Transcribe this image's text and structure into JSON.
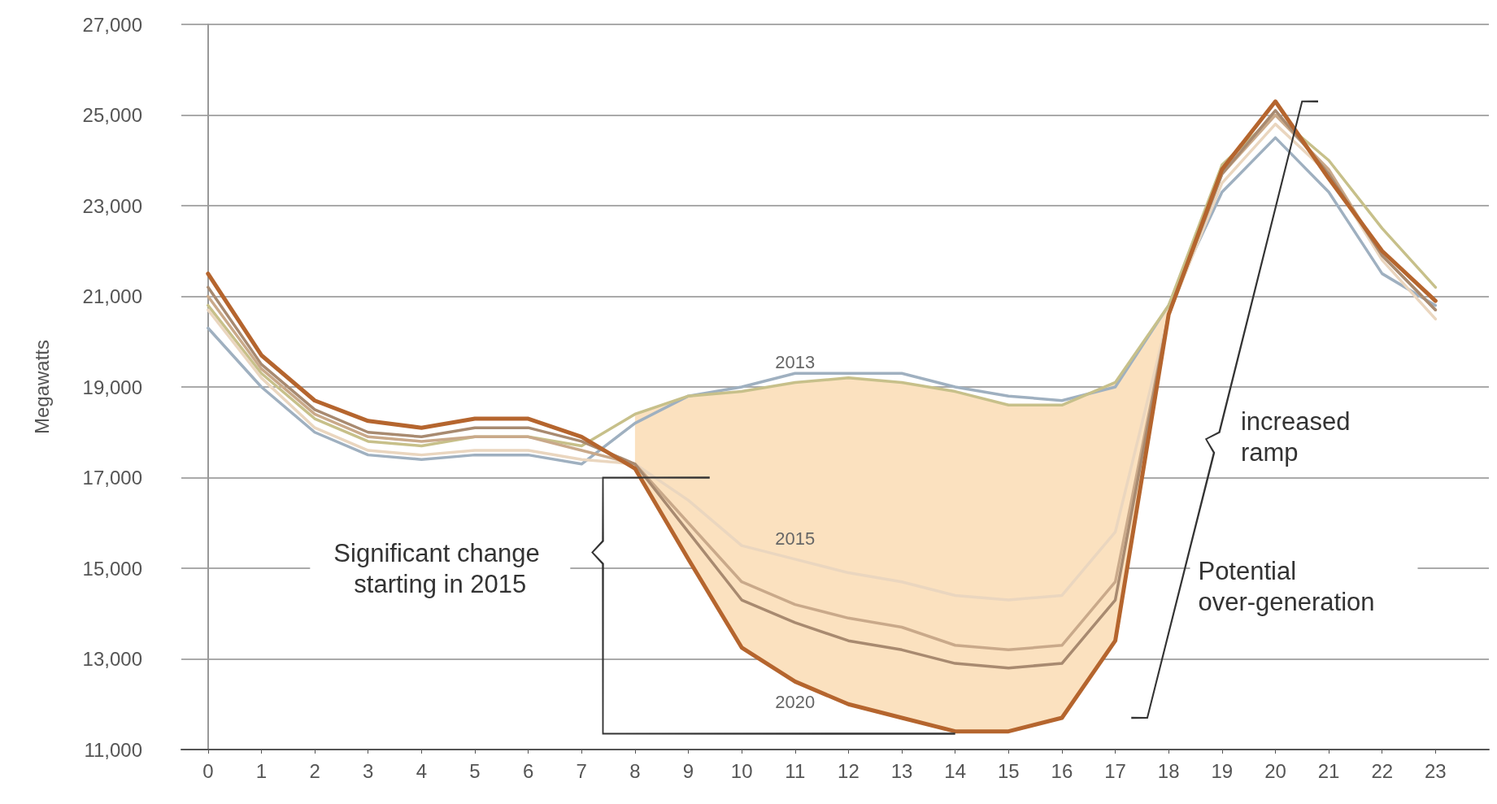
{
  "chart_data": {
    "type": "line",
    "ylabel": "Megawatts",
    "x": [
      0,
      1,
      2,
      3,
      4,
      5,
      6,
      7,
      8,
      9,
      10,
      11,
      12,
      13,
      14,
      15,
      16,
      17,
      18,
      19,
      20,
      21,
      22,
      23
    ],
    "xlim": [
      -0.5,
      24
    ],
    "xticks": [
      0,
      1,
      2,
      3,
      4,
      5,
      6,
      7,
      8,
      9,
      10,
      11,
      12,
      13,
      14,
      15,
      16,
      17,
      18,
      19,
      20,
      21,
      22,
      23
    ],
    "ylim": [
      11000,
      27000
    ],
    "yticks": [
      {
        "value": 11000,
        "label": "11,000"
      },
      {
        "value": 13000,
        "label": "13,000"
      },
      {
        "value": 15000,
        "label": "15,000"
      },
      {
        "value": 17000,
        "label": "17,000"
      },
      {
        "value": 19000,
        "label": "19,000"
      },
      {
        "value": 21000,
        "label": "21,000"
      },
      {
        "value": 23000,
        "label": "23,000"
      },
      {
        "value": 25000,
        "label": "25,000"
      },
      {
        "value": 27000,
        "label": "27,000"
      }
    ],
    "grid": "y",
    "legend": false,
    "marker": "none",
    "line_style": "solid",
    "series": [
      {
        "color": "#9fb0c0",
        "values": [
          20300,
          19000,
          18000,
          17500,
          17400,
          17500,
          17500,
          17300,
          18200,
          18800,
          19000,
          19300,
          19300,
          19300,
          19000,
          18800,
          18700,
          19000,
          20800,
          23300,
          24500,
          23300,
          21500,
          20800
        ]
      },
      {
        "name": "2013",
        "color": "#c7c08a",
        "values": [
          20800,
          19300,
          18300,
          17800,
          17700,
          17900,
          17900,
          17700,
          18400,
          18800,
          18900,
          19100,
          19200,
          19100,
          18900,
          18600,
          18600,
          19100,
          20800,
          23900,
          25000,
          24000,
          22500,
          21200
        ]
      },
      {
        "name": "2015",
        "color": "#ead6bf",
        "values": [
          20700,
          19200,
          18100,
          17600,
          17500,
          17600,
          17600,
          17400,
          17300,
          16500,
          15500,
          15200,
          14900,
          14700,
          14400,
          14300,
          14400,
          15800,
          20600,
          23500,
          24800,
          23700,
          21800,
          20500
        ]
      },
      {
        "color": "#c9a98a",
        "values": [
          21000,
          19400,
          18400,
          17900,
          17800,
          17900,
          17900,
          17600,
          17300,
          16000,
          14700,
          14200,
          13900,
          13700,
          13300,
          13200,
          13300,
          14700,
          20600,
          23700,
          25000,
          23800,
          21900,
          20700
        ]
      },
      {
        "color": "#a88a70",
        "values": [
          21200,
          19500,
          18500,
          18000,
          17900,
          18100,
          18100,
          17800,
          17300,
          15800,
          14300,
          13800,
          13400,
          13200,
          12900,
          12800,
          12900,
          14300,
          20600,
          23700,
          25100,
          23700,
          21900,
          20700
        ]
      },
      {
        "name": "2020",
        "color": "#b5652e",
        "values": [
          21500,
          19700,
          18700,
          18250,
          18100,
          18300,
          18300,
          17900,
          17200,
          15200,
          13250,
          12500,
          12000,
          11700,
          11400,
          11400,
          11700,
          13400,
          20600,
          23800,
          25300,
          23600,
          22000,
          20900
        ],
        "lower": [
          null,
          null,
          null,
          null,
          null,
          null,
          null,
          null,
          17200,
          15200,
          13250,
          12500,
          12000,
          11700,
          11400,
          11400,
          11700,
          13400,
          20600,
          23800,
          25000,
          null,
          null,
          null
        ],
        "upper": [
          null,
          null,
          null,
          null,
          null,
          null,
          null,
          null,
          18400,
          18800,
          18900,
          19100,
          19200,
          19100,
          18900,
          18600,
          18600,
          19100,
          20800,
          23900,
          25000,
          null,
          null,
          null
        ]
      }
    ],
    "annotations": [
      {
        "text": "Significant change starting in 2015"
      },
      {
        "text": "increased ramp"
      },
      {
        "text": "Potential over-generation"
      }
    ]
  }
}
